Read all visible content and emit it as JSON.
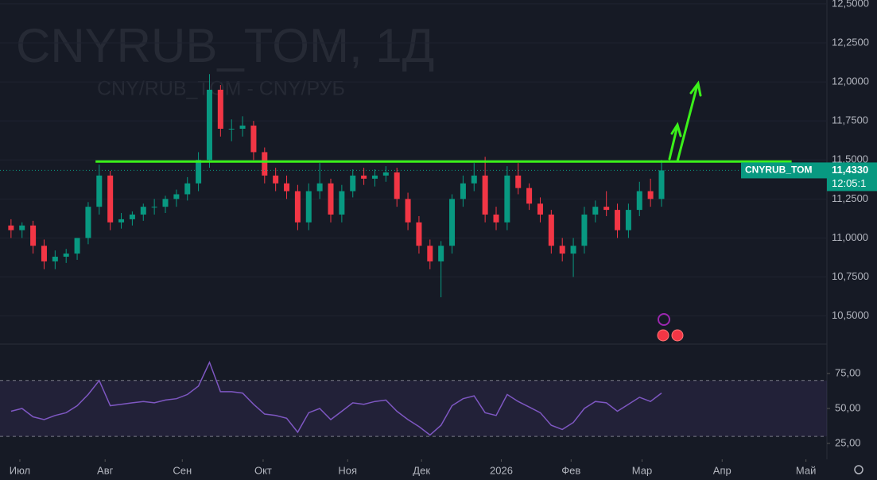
{
  "chart_data": [
    {
      "type": "candlestick",
      "title": "CNYRUB_TOM, 1Д",
      "subtitle": "CNY/RUB_TOM - CNY/РУБ",
      "xlim": [
        0,
        225
      ],
      "ylim": [
        10.325,
        12.525
      ],
      "yticks": [
        {
          "value": 10.5,
          "label": "10,5000"
        },
        {
          "value": 10.75,
          "label": "10,7500"
        },
        {
          "value": 11,
          "label": "11,0000"
        },
        {
          "value": 11.25,
          "label": "11,2500"
        },
        {
          "value": 11.5,
          "label": "11,5000"
        },
        {
          "value": 11.75,
          "label": "11,7500"
        },
        {
          "value": 12,
          "label": "12,0000"
        },
        {
          "value": 12.25,
          "label": "12,2500"
        },
        {
          "value": 12.5,
          "label": "12,5000"
        }
      ],
      "up_color": "#089981",
      "down_color": "#f23645",
      "x": [
        3,
        6,
        9,
        12,
        15,
        18,
        21,
        24,
        27,
        30,
        33,
        36,
        39,
        42,
        45,
        48,
        51,
        54,
        57,
        60,
        63,
        66,
        69,
        72,
        75,
        78,
        81,
        84,
        87,
        90,
        93,
        96,
        99,
        102,
        105,
        108,
        111,
        114,
        117,
        120,
        123,
        126,
        129,
        132,
        135,
        138,
        141,
        144,
        147,
        150,
        153,
        156,
        159,
        162,
        165,
        168,
        171,
        174,
        177,
        180
      ],
      "open": [
        11.08,
        11.05,
        11.08,
        10.95,
        10.85,
        10.88,
        10.9,
        11.0,
        11.2,
        11.4,
        11.1,
        11.12,
        11.15,
        11.2,
        11.2,
        11.25,
        11.28,
        11.35,
        11.5,
        11.95,
        11.7,
        11.7,
        11.72,
        11.55,
        11.4,
        11.35,
        11.3,
        11.1,
        11.3,
        11.35,
        11.15,
        11.3,
        11.4,
        11.38,
        11.4,
        11.42,
        11.25,
        11.1,
        10.95,
        10.85,
        10.95,
        11.25,
        11.35,
        11.4,
        11.15,
        11.1,
        11.4,
        11.32,
        11.22,
        11.15,
        10.95,
        10.9,
        10.95,
        11.15,
        11.2,
        11.18,
        11.05,
        11.18,
        11.3,
        11.25
      ],
      "high": [
        11.12,
        11.1,
        11.11,
        10.99,
        10.92,
        10.93,
        11.0,
        11.23,
        11.47,
        11.43,
        11.16,
        11.17,
        11.22,
        11.25,
        11.27,
        11.31,
        11.39,
        11.55,
        12.05,
        11.98,
        11.76,
        11.78,
        11.75,
        11.58,
        11.45,
        11.4,
        11.34,
        11.35,
        11.48,
        11.38,
        11.34,
        11.44,
        11.45,
        11.44,
        11.46,
        11.45,
        11.29,
        11.14,
        10.99,
        10.98,
        11.28,
        11.4,
        11.48,
        11.52,
        11.2,
        11.46,
        11.48,
        11.35,
        11.26,
        11.18,
        11.0,
        11.0,
        11.2,
        11.24,
        11.3,
        11.22,
        11.22,
        11.36,
        11.38,
        11.5
      ],
      "low": [
        11.0,
        11.0,
        10.9,
        10.8,
        10.8,
        10.84,
        10.86,
        10.96,
        11.15,
        11.05,
        11.06,
        11.08,
        11.11,
        11.15,
        11.16,
        11.2,
        11.24,
        11.3,
        11.45,
        11.65,
        11.62,
        11.65,
        11.5,
        11.35,
        11.3,
        11.25,
        11.05,
        11.05,
        11.25,
        11.1,
        11.1,
        11.26,
        11.34,
        11.33,
        11.36,
        11.2,
        11.05,
        10.9,
        10.8,
        10.62,
        10.9,
        11.2,
        11.3,
        11.1,
        11.05,
        11.05,
        11.28,
        11.18,
        11.1,
        10.9,
        10.85,
        10.75,
        10.9,
        11.1,
        11.14,
        11.0,
        11.0,
        11.14,
        11.2,
        11.2
      ],
      "close": [
        11.05,
        11.08,
        10.95,
        10.85,
        10.88,
        10.9,
        11.0,
        11.2,
        11.4,
        11.1,
        11.12,
        11.15,
        11.2,
        11.2,
        11.25,
        11.28,
        11.35,
        11.5,
        11.95,
        11.7,
        11.7,
        11.72,
        11.55,
        11.4,
        11.35,
        11.3,
        11.1,
        11.3,
        11.35,
        11.15,
        11.3,
        11.4,
        11.38,
        11.4,
        11.42,
        11.25,
        11.1,
        10.95,
        10.85,
        10.95,
        11.25,
        11.35,
        11.4,
        11.15,
        11.1,
        11.4,
        11.32,
        11.22,
        11.15,
        10.95,
        10.9,
        10.95,
        11.15,
        11.2,
        11.18,
        11.05,
        11.18,
        11.3,
        11.25,
        11.433
      ],
      "level": {
        "value": 11.49,
        "x": [
          26,
          215.4
        ],
        "color": "#3bf01a"
      },
      "last_price": {
        "value": 11.433,
        "label": "11,4330",
        "name": "CNYRUB_TOM",
        "time": "12:05:1"
      }
    },
    {
      "type": "line",
      "xlim": [
        0,
        225
      ],
      "ylim": [
        13.6,
        94.9
      ],
      "yticks": [
        {
          "value": 25,
          "label": "25,00"
        },
        {
          "value": 50,
          "label": "50,00"
        },
        {
          "value": 75,
          "label": "75,00"
        }
      ],
      "band": [
        30,
        70
      ],
      "color": "#7e57c2",
      "x": [
        3,
        6,
        9,
        12,
        15,
        18,
        21,
        24,
        27,
        30,
        33,
        36,
        39,
        42,
        45,
        48,
        51,
        54,
        57,
        60,
        63,
        66,
        69,
        72,
        75,
        78,
        81,
        84,
        87,
        90,
        93,
        96,
        99,
        102,
        105,
        108,
        111,
        114,
        117,
        120,
        123,
        126,
        129,
        132,
        135,
        138,
        141,
        144,
        147,
        150,
        153,
        156,
        159,
        162,
        165,
        168,
        171,
        174,
        177,
        180
      ],
      "values": [
        48,
        50,
        44,
        42,
        45,
        47,
        52,
        60,
        70,
        52,
        53,
        54,
        55,
        54,
        56,
        57,
        60,
        66,
        83,
        62,
        62,
        61,
        53,
        46,
        45,
        43,
        33,
        47,
        50,
        42,
        48,
        54,
        53,
        55,
        56,
        48,
        42,
        37,
        31,
        38,
        52,
        57,
        59,
        47,
        45,
        60,
        55,
        51,
        47,
        38,
        35,
        40,
        50,
        55,
        54,
        48,
        53,
        58,
        55,
        61
      ],
      "xticks": [
        {
          "value": 5.4,
          "label": "Июл"
        },
        {
          "value": 28.6,
          "label": "Авг"
        },
        {
          "value": 49.6,
          "label": "Сен"
        },
        {
          "value": 71.6,
          "label": "Окт"
        },
        {
          "value": 94.6,
          "label": "Ноя"
        },
        {
          "value": 114.7,
          "label": "Дек"
        },
        {
          "value": 136.4,
          "label": "2026"
        },
        {
          "value": 155.4,
          "label": "Фев"
        },
        {
          "value": 174.7,
          "label": "Мар"
        },
        {
          "value": 196.5,
          "label": "Апр"
        },
        {
          "value": 219.3,
          "label": "Май"
        }
      ]
    }
  ]
}
